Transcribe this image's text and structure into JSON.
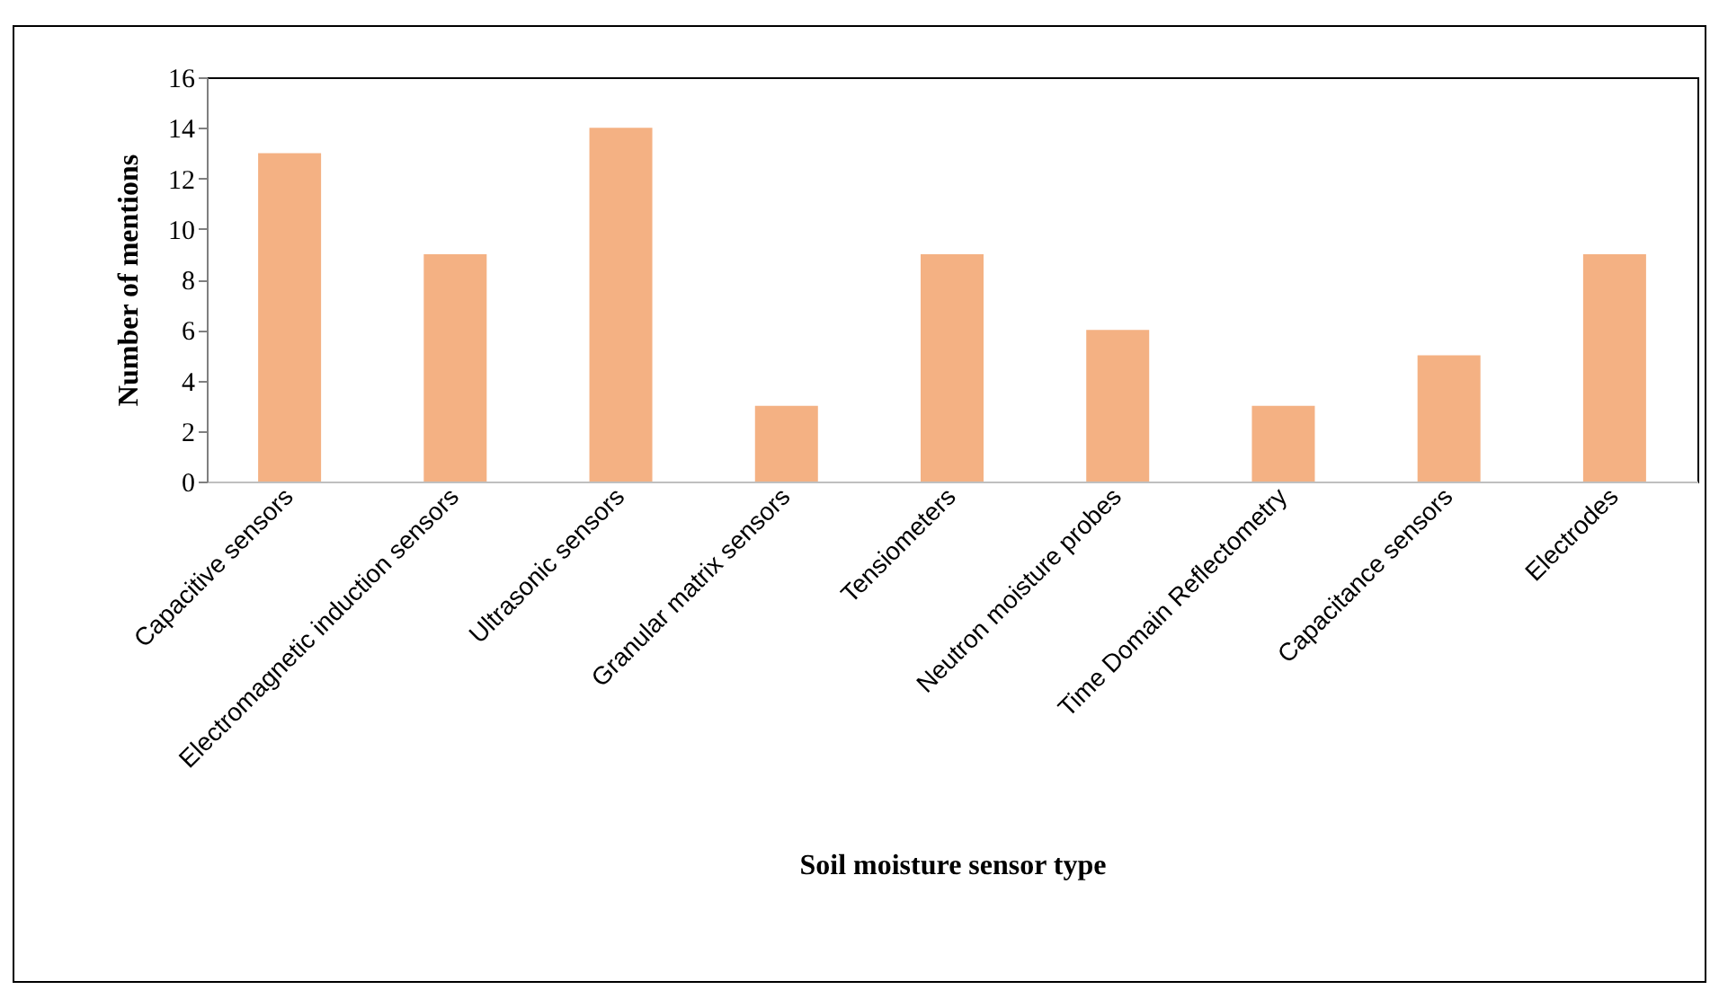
{
  "chart_data": {
    "type": "bar",
    "xlabel": "Soil moisture sensor type",
    "ylabel": "Number of mentions",
    "categories": [
      "Capacitive sensors",
      "Electromagnetic induction sensors",
      "Ultrasonic sensors",
      "Granular matrix sensors",
      "Tensiometers",
      "Neutron moisture probes",
      "Time Domain Reflectometry",
      "Capacitance sensors",
      "Electrodes"
    ],
    "values": [
      13,
      9,
      14,
      3,
      9,
      6,
      3,
      5,
      9
    ],
    "color": "#f4b183",
    "ylim": [
      0,
      16
    ],
    "yticks": [
      0,
      2,
      4,
      6,
      8,
      10,
      12,
      14,
      16
    ],
    "grid": false
  }
}
